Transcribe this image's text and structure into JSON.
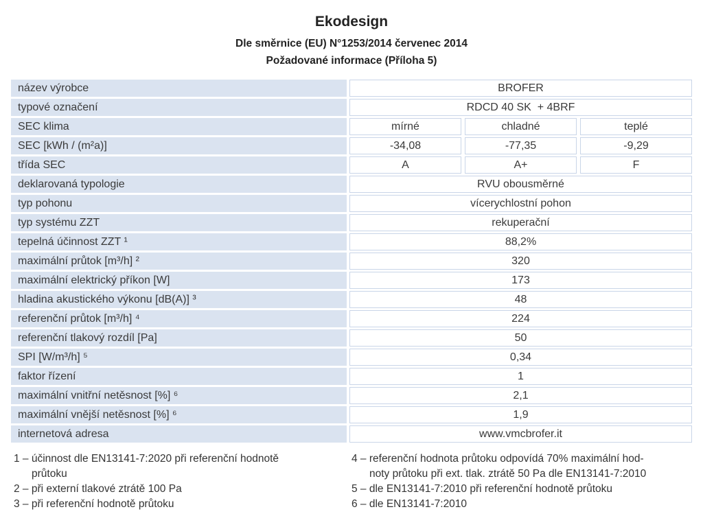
{
  "header": {
    "title": "Ekodesign",
    "subtitle1": "Dle směrnice (EU) N°1253/2014 červenec 2014",
    "subtitle2": "Požadované informace (Příloha 5)"
  },
  "table": {
    "rows": [
      {
        "label": "název výrobce",
        "value": "BROFER"
      },
      {
        "label": "typové označení",
        "value": "RDCD 40 SK  + 4BRF"
      },
      {
        "label": "SEC klima",
        "values": [
          "mírné",
          "chladné",
          "teplé"
        ]
      },
      {
        "label": "SEC [kWh / (m²a)]",
        "values": [
          "-34,08",
          "-77,35",
          "-9,29"
        ]
      },
      {
        "label": "třída SEC",
        "values": [
          "A",
          "A+",
          "F"
        ]
      },
      {
        "label": "deklarovaná typologie",
        "value": "RVU obousměrné"
      },
      {
        "label": "typ pohonu",
        "value": "vícerychlostní pohon"
      },
      {
        "label": "typ systému ZZT",
        "value": "rekuperační"
      },
      {
        "label": "tepelná účinnost ZZT ¹",
        "value": "88,2%"
      },
      {
        "label": "maximální průtok [m³/h] ²",
        "value": "320"
      },
      {
        "label": "maximální elektrický příkon [W]",
        "value": "173"
      },
      {
        "label": "hladina akustického výkonu [dB(A)] ³",
        "value": "48"
      },
      {
        "label": "referenční průtok [m³/h] ⁴",
        "value": "224"
      },
      {
        "label": "referenční tlakový rozdíl [Pa]",
        "value": "50"
      },
      {
        "label": "SPI [W/m³/h] ⁵",
        "value": "0,34"
      },
      {
        "label": "faktor řízení",
        "value": "1"
      },
      {
        "label": "maximální vnitřní netěsnost [%] ⁶",
        "value": "2,1"
      },
      {
        "label": "maximální vnější netěsnost [%] ⁶",
        "value": "1,9"
      },
      {
        "label": "internetová adresa",
        "value": "www.vmcbrofer.it"
      }
    ]
  },
  "footnotes": {
    "left": [
      "1 – účinnost dle EN13141-7:2020 při referenční hodnotě\nprůtoku",
      "2 – při externí tlakové ztrátě 100 Pa",
      "3 – při referenční hodnotě průtoku"
    ],
    "right": [
      "4 – referenční hodnota průtoku odpovídá 70% maximální hod-\nnoty průtoku při ext. tlak. ztrátě 50 Pa dle EN13141-7:2010",
      "5 – dle EN13141-7:2010 při referenční hodnotě průtoku",
      "6 – dle EN13141-7:2010"
    ]
  },
  "colors": {
    "label_cell_bg": "#dae3f0",
    "value_cell_border": "#c9d5e8",
    "text": "#3a3a3a"
  }
}
